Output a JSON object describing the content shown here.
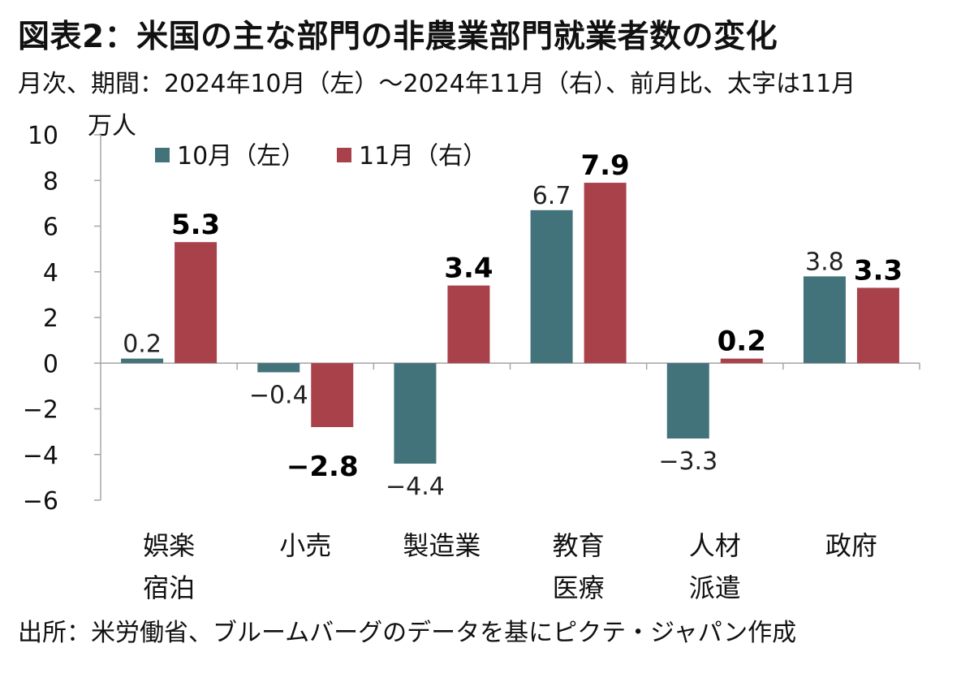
{
  "title": "図表2：米国の主な部門の非農業部門就業者数の変化",
  "subtitle": "月次、期間：2024年10月（左）～2024年11月（右）、前月比、太字は11月",
  "source": "出所：米労働省、ブルームバーグのデータを基にピクテ・ジャパン作成",
  "colors": {
    "oct": "#43737A",
    "nov": "#A9414B",
    "axis": "#A6A6A6"
  },
  "chart_data": {
    "type": "bar",
    "ylabel": "万人",
    "ylim": [
      -6,
      10
    ],
    "yticks": [
      "10",
      "8",
      "6",
      "4",
      "2",
      "0",
      "−2",
      "−4",
      "−6"
    ],
    "yticks_values": [
      10,
      8,
      6,
      4,
      2,
      0,
      -2,
      -4,
      -6
    ],
    "categories": [
      {
        "line1": "娯楽",
        "line2": "宿泊"
      },
      {
        "line1": "小売",
        "line2": ""
      },
      {
        "line1": "製造業",
        "line2": ""
      },
      {
        "line1": "教育",
        "line2": "医療"
      },
      {
        "line1": "人材",
        "line2": "派遣"
      },
      {
        "line1": "政府",
        "line2": ""
      }
    ],
    "series": [
      {
        "name": "10月（左）",
        "values": [
          0.2,
          -0.4,
          -4.4,
          6.7,
          -3.3,
          3.8
        ],
        "labels": [
          "0.2",
          "−0.4",
          "−4.4",
          "6.7",
          "−3.3",
          "3.8"
        ]
      },
      {
        "name": "11月（右）",
        "values": [
          5.3,
          -2.8,
          3.4,
          7.9,
          0.2,
          3.3
        ],
        "labels": [
          "5.3",
          "−2.8",
          "3.4",
          "7.9",
          "0.2",
          "3.3"
        ]
      }
    ]
  }
}
